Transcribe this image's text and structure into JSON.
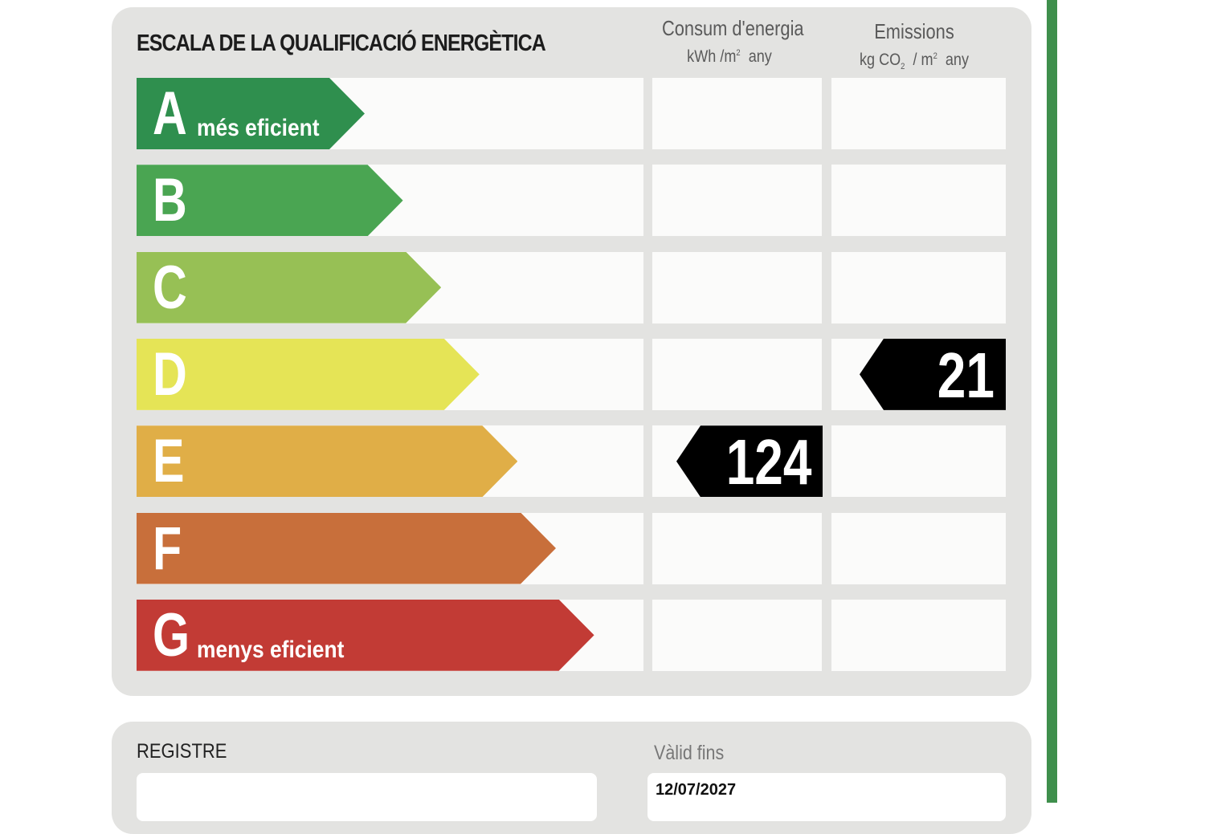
{
  "title": "ESCALA DE LA QUALIFICACIÓ ENERGÈTICA",
  "columns": {
    "consum": {
      "label": "Consum d'energia",
      "unit_prefix": "kWh /m",
      "unit_sup": "2",
      "unit_suffix": "any"
    },
    "emissions": {
      "label": "Emissions",
      "unit_a": "kg CO",
      "unit_sub": "2",
      "unit_b": "/ m",
      "unit_sup": "2",
      "unit_suffix": "any"
    }
  },
  "ratings": [
    {
      "letter": "A",
      "subtitle": "més eficient",
      "color": "#2f8f4e"
    },
    {
      "letter": "B",
      "subtitle": "",
      "color": "#4aa552"
    },
    {
      "letter": "C",
      "subtitle": "",
      "color": "#97c055"
    },
    {
      "letter": "D",
      "subtitle": "",
      "color": "#e5e456"
    },
    {
      "letter": "E",
      "subtitle": "",
      "color": "#e0ae47"
    },
    {
      "letter": "F",
      "subtitle": "",
      "color": "#c86f3b"
    },
    {
      "letter": "G",
      "subtitle": "menys eficient",
      "color": "#c23b35"
    }
  ],
  "result": {
    "consum": {
      "value": "124",
      "rating": "E"
    },
    "emissions": {
      "value": "21",
      "rating": "D"
    }
  },
  "registre": {
    "label": "REGISTRE",
    "valid_label": "Vàlid fins",
    "valid_date": "12/07/2027"
  },
  "colors": {
    "indicator": "#000000",
    "panel": "#e3e3e1",
    "accent_line": "#3f8f4c"
  }
}
